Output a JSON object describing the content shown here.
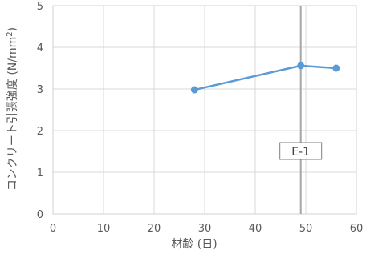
{
  "chart_data": {
    "type": "line",
    "xlabel": "材齢 (日)",
    "ylabel_main": "コンクリート引張強度 (N/mm",
    "ylabel_sup": "2",
    "ylabel_end": ")",
    "xlim": [
      0,
      60
    ],
    "ylim": [
      0,
      5
    ],
    "xticks": [
      0,
      10,
      20,
      30,
      40,
      50,
      60
    ],
    "yticks": [
      0,
      1,
      2,
      3,
      4,
      5
    ],
    "grid": true,
    "series": [
      {
        "color": "#5b9bd5",
        "points": [
          {
            "x": 28,
            "y": 2.98
          },
          {
            "x": 49,
            "y": 3.56
          },
          {
            "x": 56,
            "y": 3.5
          }
        ]
      }
    ],
    "annotation": {
      "label": "E-1",
      "x": 49,
      "label_y": 1.5,
      "line_color": "#a6a6a6"
    }
  }
}
